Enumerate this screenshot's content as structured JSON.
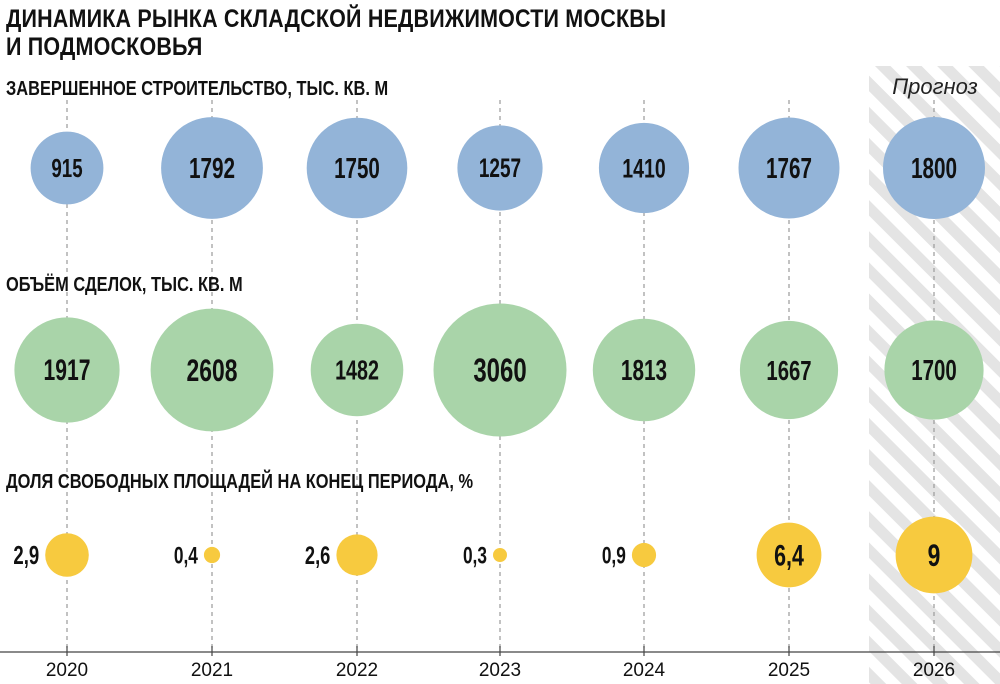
{
  "title_lines": [
    "ДИНАМИКА РЫНКА СКЛАДСКОЙ НЕДВИЖИМОСТИ МОСКВЫ",
    "И ПОДМОСКОВЬЯ"
  ],
  "forecast_label": "Прогноз",
  "colors": {
    "blue": "#93b4d8",
    "green": "#a9d4a9",
    "yellow": "#f7ca3f",
    "dash": "#9a9a9a",
    "hatch": "#e4e4e4"
  },
  "chart_data": {
    "type": "bubble",
    "x": [
      "2020",
      "2021",
      "2022",
      "2023",
      "2024",
      "2025",
      "2026"
    ],
    "forecast_years": [
      "2026"
    ],
    "series": [
      {
        "name": "ЗАВЕРШЕННОЕ СТРОИТЕЛЬСТВО, ТЫС. КВ. М",
        "labels": [
          "915",
          "1792",
          "1750",
          "1257",
          "1410",
          "1767",
          "1800"
        ],
        "values": [
          915,
          1792,
          1750,
          1257,
          1410,
          1767,
          1800
        ]
      },
      {
        "name": "ОБЪЁМ СДЕЛОК, ТЫС. КВ. М",
        "labels": [
          "1917",
          "2608",
          "1482",
          "3060",
          "1813",
          "1667",
          "1700"
        ],
        "values": [
          1917,
          2608,
          1482,
          3060,
          1813,
          1667,
          1700
        ]
      },
      {
        "name": "ДОЛЯ СВОБОДНЫХ ПЛОЩАДЕЙ НА КОНЕЦ ПЕРИОДА, %",
        "labels": [
          "2,9",
          "0,4",
          "2,6",
          "0,3",
          "0,9",
          "6,4",
          "9"
        ],
        "values": [
          2.9,
          0.4,
          2.6,
          0.3,
          0.9,
          6.4,
          9
        ]
      }
    ]
  }
}
